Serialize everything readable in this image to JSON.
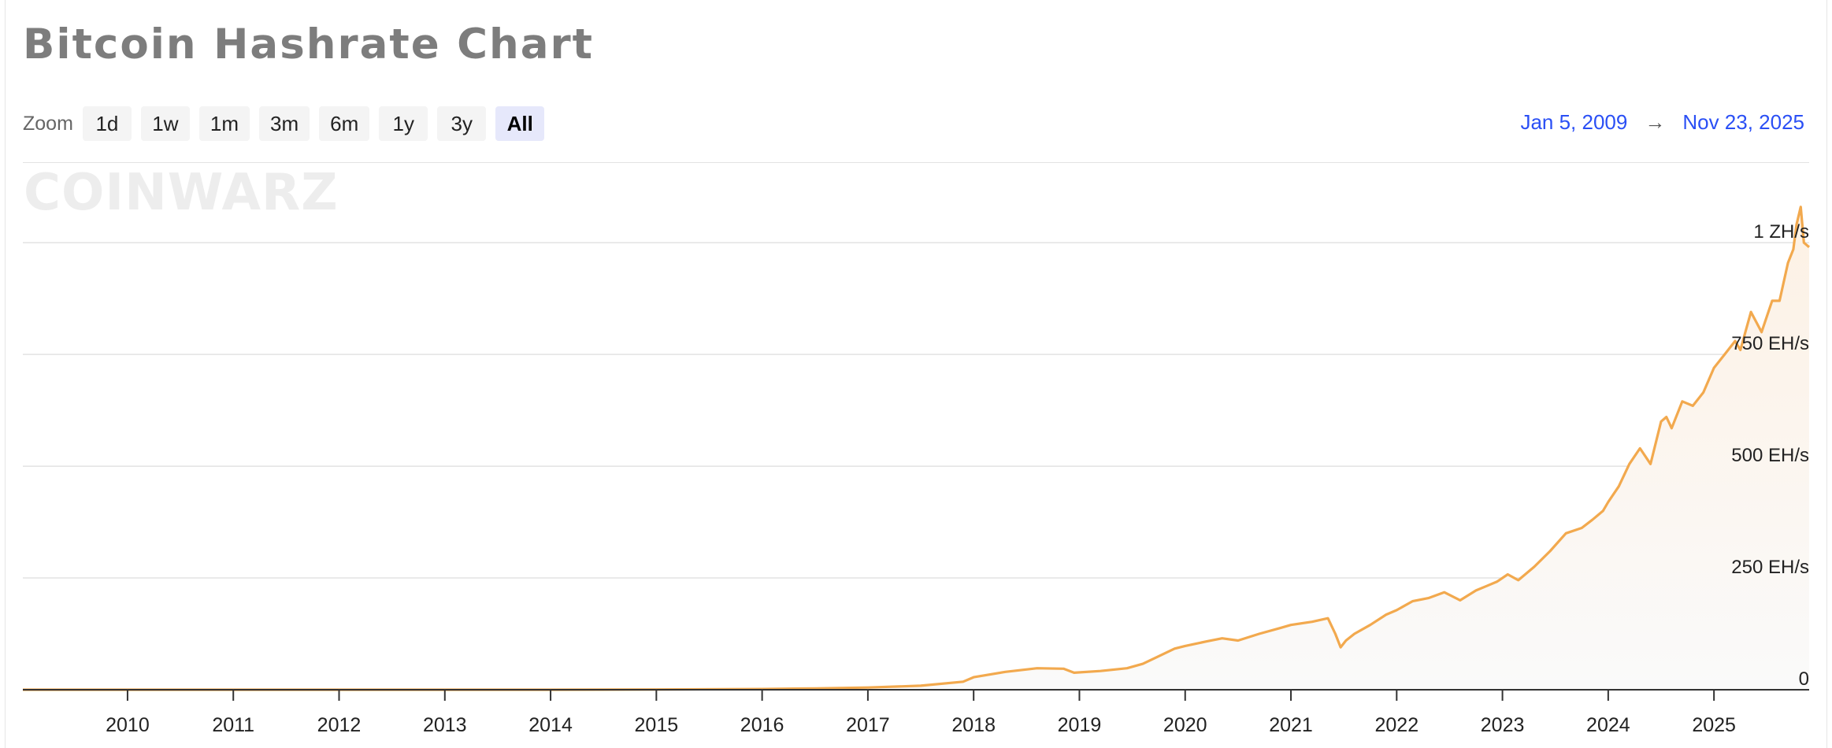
{
  "page": {
    "title": "Bitcoin Hashrate Chart",
    "zoom_label": "Zoom",
    "zoom_buttons": [
      "1d",
      "1w",
      "1m",
      "3m",
      "6m",
      "1y",
      "3y",
      "All"
    ],
    "zoom_active": "All",
    "range_start": "Jan 5, 2009",
    "range_arrow": "→",
    "range_end": "Nov 23, 2025",
    "watermark": "COINWARZ"
  },
  "colors": {
    "line": "#f2a94e",
    "grid": "#e3e3e3",
    "axis_text": "#222222",
    "range_link": "#2a4ff5"
  },
  "chart_data": {
    "type": "area",
    "x_unit": "year",
    "xlim": [
      2009.01,
      2025.9
    ],
    "ylim": [
      0,
      1180
    ],
    "y_ticks": [
      {
        "value": 0,
        "label": "0"
      },
      {
        "value": 250,
        "label": "250 EH/s"
      },
      {
        "value": 500,
        "label": "500 EH/s"
      },
      {
        "value": 750,
        "label": "750 EH/s"
      },
      {
        "value": 1000,
        "label": "1 ZH/s"
      }
    ],
    "x_ticks": [
      "2010",
      "2011",
      "2012",
      "2013",
      "2014",
      "2015",
      "2016",
      "2017",
      "2018",
      "2019",
      "2020",
      "2021",
      "2022",
      "2023",
      "2024",
      "2025"
    ],
    "grid": true,
    "series": [
      {
        "x": [
          2009.01,
          2010,
          2011,
          2012,
          2013,
          2014,
          2015,
          2016,
          2016.5,
          2017,
          2017.5,
          2017.9,
          2018.0,
          2018.3,
          2018.6,
          2018.85,
          2018.95,
          2019.2,
          2019.45,
          2019.6,
          2019.75,
          2019.9,
          2020.0,
          2020.2,
          2020.35,
          2020.5,
          2020.7,
          2020.9,
          2021.0,
          2021.2,
          2021.35,
          2021.42,
          2021.47,
          2021.52,
          2021.6,
          2021.75,
          2021.9,
          2022.0,
          2022.15,
          2022.3,
          2022.45,
          2022.6,
          2022.75,
          2022.85,
          2022.95,
          2023.05,
          2023.15,
          2023.3,
          2023.45,
          2023.6,
          2023.75,
          2023.85,
          2023.95,
          2024.0,
          2024.1,
          2024.2,
          2024.3,
          2024.4,
          2024.5,
          2024.55,
          2024.6,
          2024.7,
          2024.8,
          2024.9,
          2025.0,
          2025.1,
          2025.2,
          2025.25,
          2025.35,
          2025.45,
          2025.55,
          2025.62,
          2025.7,
          2025.75,
          2025.78,
          2025.82,
          2025.85,
          2025.9
        ],
        "y": [
          0,
          0,
          0,
          0,
          0,
          0,
          0.5,
          1.5,
          3,
          5,
          9,
          18,
          28,
          40,
          48,
          47,
          38,
          42,
          48,
          58,
          75,
          92,
          98,
          108,
          115,
          110,
          125,
          138,
          145,
          152,
          160,
          125,
          95,
          110,
          125,
          145,
          168,
          178,
          198,
          205,
          218,
          200,
          222,
          232,
          242,
          258,
          245,
          275,
          310,
          350,
          362,
          380,
          400,
          420,
          455,
          505,
          540,
          505,
          600,
          610,
          585,
          645,
          635,
          665,
          720,
          750,
          780,
          760,
          845,
          800,
          870,
          870,
          955,
          985,
          1040,
          1080,
          1000,
          990
        ]
      }
    ]
  }
}
